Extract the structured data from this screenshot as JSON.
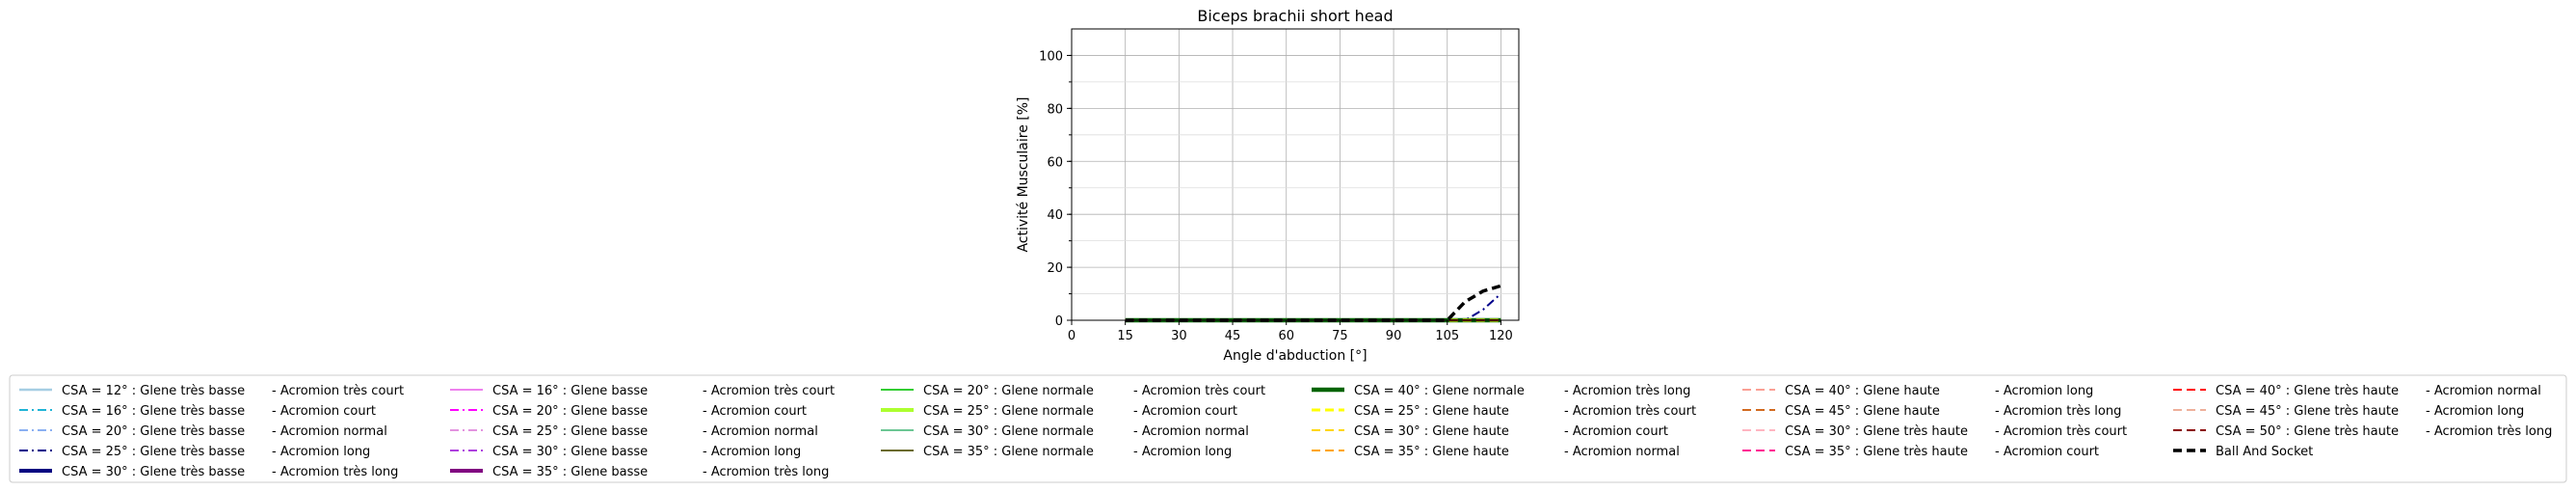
{
  "chart_data": {
    "type": "line",
    "title": "Biceps brachii short head",
    "xlabel": "Angle d'abduction [°]",
    "ylabel": "Activité Musculaire [%]",
    "xlim": [
      0,
      125
    ],
    "ylim": [
      0,
      110
    ],
    "xticks": [
      "0",
      "15",
      "30",
      "45",
      "60",
      "75",
      "90",
      "105",
      "120"
    ],
    "yticks": [
      "0",
      "20",
      "40",
      "60",
      "80",
      "100"
    ],
    "grid": true,
    "legend_position": "bottom",
    "x": [
      15,
      20,
      25,
      30,
      35,
      40,
      45,
      50,
      55,
      60,
      65,
      70,
      75,
      80,
      85,
      90,
      95,
      100,
      105,
      110,
      115,
      120
    ],
    "series": [
      {
        "name": "CSA = 12° : Glene très basse - Acromion très court",
        "color": "#a6cee3",
        "dash": "solid",
        "width": 2.5,
        "values": [
          0,
          0,
          0,
          0,
          0,
          0,
          0,
          0,
          0,
          0,
          0,
          0,
          0,
          0,
          0,
          0,
          0,
          0,
          0,
          0,
          0,
          0
        ]
      },
      {
        "name": "CSA = 16° : Glene très basse - Acromion court",
        "color": "#1fb4d6",
        "dash": "dashdot",
        "width": 2,
        "values": [
          0,
          0,
          0,
          0,
          0,
          0,
          0,
          0,
          0,
          0,
          0,
          0,
          0,
          0,
          0,
          0,
          0,
          0,
          0,
          0,
          0,
          0
        ]
      },
      {
        "name": "CSA = 20° : Glene très basse - Acromion normal",
        "color": "#6495ed",
        "dash": "dashdot",
        "width": 1.5,
        "values": [
          0,
          0,
          0,
          0,
          0,
          0,
          0,
          0,
          0,
          0,
          0,
          0,
          0,
          0,
          0,
          0,
          0,
          0,
          0,
          0,
          0,
          0
        ]
      },
      {
        "name": "CSA = 25° : Glene très basse - Acromion long",
        "color": "#00008b",
        "dash": "dashdot",
        "width": 2,
        "values": [
          0,
          0,
          0,
          0,
          0,
          0,
          0,
          0,
          0,
          0,
          0,
          0,
          0,
          0,
          0,
          0,
          0,
          0,
          0,
          0,
          4,
          10
        ]
      },
      {
        "name": "CSA = 30° : Glene très basse - Acromion très long",
        "color": "#000080",
        "dash": "solid",
        "width": 4,
        "values": [
          0,
          0,
          0,
          0,
          0,
          0,
          0,
          0,
          0,
          0,
          0,
          0,
          0,
          0,
          0,
          0,
          0,
          0,
          0,
          0,
          0,
          0
        ]
      },
      {
        "name": "CSA = 16° : Glene basse - Acromion très court",
        "color": "#ee82ee",
        "dash": "solid",
        "width": 2,
        "values": [
          0,
          0,
          0,
          0,
          0,
          0,
          0,
          0,
          0,
          0,
          0,
          0,
          0,
          0,
          0,
          0,
          0,
          0,
          0,
          0,
          0,
          0
        ]
      },
      {
        "name": "CSA = 20° : Glene basse - Acromion court",
        "color": "#ff00ff",
        "dash": "dashdot",
        "width": 2,
        "values": [
          0,
          0,
          0,
          0,
          0,
          0,
          0,
          0,
          0,
          0,
          0,
          0,
          0,
          0,
          0,
          0,
          0,
          0,
          0,
          0,
          0,
          0
        ]
      },
      {
        "name": "CSA = 25° : Glene basse - Acromion normal",
        "color": "#da70d6",
        "dash": "dashdot",
        "width": 1.5,
        "values": [
          0,
          0,
          0,
          0,
          0,
          0,
          0,
          0,
          0,
          0,
          0,
          0,
          0,
          0,
          0,
          0,
          0,
          0,
          0,
          0,
          0,
          0
        ]
      },
      {
        "name": "CSA = 30° : Glene basse - Acromion long",
        "color": "#9400d3",
        "dash": "dashdot",
        "width": 1.5,
        "values": [
          0,
          0,
          0,
          0,
          0,
          0,
          0,
          0,
          0,
          0,
          0,
          0,
          0,
          0,
          0,
          0,
          0,
          0,
          0,
          0,
          0,
          0
        ]
      },
      {
        "name": "CSA = 35° : Glene basse - Acromion très long",
        "color": "#800080",
        "dash": "solid",
        "width": 4,
        "values": [
          0,
          0,
          0,
          0,
          0,
          0,
          0,
          0,
          0,
          0,
          0,
          0,
          0,
          0,
          0,
          0,
          0,
          0,
          0,
          0,
          0,
          0
        ]
      },
      {
        "name": "CSA = 20° : Glene normale - Acromion très court",
        "color": "#32cd32",
        "dash": "solid",
        "width": 2,
        "values": [
          0,
          0,
          0,
          0,
          0,
          0,
          0,
          0,
          0,
          0,
          0,
          0,
          0,
          0,
          0,
          0,
          0,
          0,
          0,
          0,
          0,
          0
        ]
      },
      {
        "name": "CSA = 25° : Glene normale - Acromion court",
        "color": "#adff2f",
        "dash": "solid",
        "width": 4,
        "values": [
          0,
          0,
          0,
          0,
          0,
          0,
          0,
          0,
          0,
          0,
          0,
          0,
          0,
          0,
          0,
          0,
          0,
          0,
          0,
          0,
          0,
          0
        ]
      },
      {
        "name": "CSA = 30° : Glene normale - Acromion normal",
        "color": "#3cb371",
        "dash": "solid",
        "width": 1.5,
        "values": [
          0,
          0,
          0,
          0,
          0,
          0,
          0,
          0,
          0,
          0,
          0,
          0,
          0,
          0,
          0,
          0,
          0,
          0,
          0,
          0,
          0,
          0
        ]
      },
      {
        "name": "CSA = 35° : Glene normale - Acromion long",
        "color": "#6b6b2a",
        "dash": "solid",
        "width": 2,
        "values": [
          0,
          0,
          0,
          0,
          0,
          0,
          0,
          0,
          0,
          0,
          0,
          0,
          0,
          0,
          0,
          0,
          0,
          0,
          0,
          0,
          0,
          0
        ]
      },
      {
        "name": "CSA = 40° : Glene normale - Acromion très long",
        "color": "#006400",
        "dash": "solid",
        "width": 4.5,
        "values": [
          0,
          0,
          0,
          0,
          0,
          0,
          0,
          0,
          0,
          0,
          0,
          0,
          0,
          0,
          0,
          0,
          0,
          0,
          0,
          0,
          0,
          0
        ]
      },
      {
        "name": "CSA = 25° : Glene haute - Acromion très court",
        "color": "#ffff00",
        "dash": "dashed",
        "width": 3,
        "values": [
          0,
          0,
          0,
          0,
          0,
          0,
          0,
          0,
          0,
          0,
          0,
          0,
          0,
          0,
          0,
          0,
          0,
          0,
          0,
          0,
          0,
          0
        ]
      },
      {
        "name": "CSA = 30° : Glene haute - Acromion court",
        "color": "#ffd700",
        "dash": "dashed",
        "width": 2,
        "values": [
          0,
          0,
          0,
          0,
          0,
          0,
          0,
          0,
          0,
          0,
          0,
          0,
          0,
          0,
          0,
          0,
          0,
          0,
          0,
          0,
          0,
          0
        ]
      },
      {
        "name": "CSA = 35° : Glene haute - Acromion normal",
        "color": "#ffa500",
        "dash": "dashed",
        "width": 2,
        "values": [
          0,
          0,
          0,
          0,
          0,
          0,
          0,
          0,
          0,
          0,
          0,
          0,
          0,
          0,
          0,
          0,
          0,
          0,
          0,
          0,
          0,
          0
        ]
      },
      {
        "name": "CSA = 40° : Glene haute - Acromion long",
        "color": "#fa8072",
        "dash": "dashed",
        "width": 1.5,
        "values": [
          0,
          0,
          0,
          0,
          0,
          0,
          0,
          0,
          0,
          0,
          0,
          0,
          0,
          0,
          0,
          0,
          0,
          0,
          0,
          0,
          0,
          0
        ]
      },
      {
        "name": "CSA = 45° : Glene haute - Acromion très long",
        "color": "#d2691e",
        "dash": "dashed",
        "width": 2,
        "values": [
          0,
          0,
          0,
          0,
          0,
          0,
          0,
          0,
          0,
          0,
          0,
          0,
          0,
          0,
          0,
          0,
          0,
          0,
          0,
          0,
          0,
          0
        ]
      },
      {
        "name": "CSA = 30° : Glene très haute - Acromion très court",
        "color": "#ffb6c1",
        "dash": "dashed",
        "width": 2,
        "values": [
          0,
          0,
          0,
          0,
          0,
          0,
          0,
          0,
          0,
          0,
          0,
          0,
          0,
          0,
          0,
          0,
          0,
          0,
          0,
          0,
          0,
          0
        ]
      },
      {
        "name": "CSA = 35° : Glene très haute - Acromion court",
        "color": "#ff1493",
        "dash": "dashed",
        "width": 2,
        "values": [
          0,
          0,
          0,
          0,
          0,
          0,
          0,
          0,
          0,
          0,
          0,
          0,
          0,
          0,
          0,
          0,
          0,
          0,
          0,
          0,
          0,
          0
        ]
      },
      {
        "name": "CSA = 40° : Glene très haute - Acromion normal",
        "color": "#ff0000",
        "dash": "dashed",
        "width": 2,
        "values": [
          0,
          0,
          0,
          0,
          0,
          0,
          0,
          0,
          0,
          0,
          0,
          0,
          0,
          0,
          0,
          0,
          0,
          0,
          0,
          0,
          0,
          0
        ]
      },
      {
        "name": "CSA = 45° : Glene très haute - Acromion long",
        "color": "#e9967a",
        "dash": "dashed",
        "width": 1.5,
        "values": [
          0,
          0,
          0,
          0,
          0,
          0,
          0,
          0,
          0,
          0,
          0,
          0,
          0,
          0,
          0,
          0,
          0,
          0,
          0,
          0,
          0,
          0
        ]
      },
      {
        "name": "CSA = 50° : Glene très haute - Acromion très long",
        "color": "#8b0000",
        "dash": "dashed",
        "width": 2,
        "values": [
          0,
          0,
          0,
          0,
          0,
          0,
          0,
          0,
          0,
          0,
          0,
          0,
          0,
          0,
          0,
          0,
          0,
          0,
          0,
          0,
          0,
          0
        ]
      },
      {
        "name": "Ball And Socket",
        "color": "#000000",
        "dash": "dashed",
        "width": 3.5,
        "values": [
          0,
          0,
          0,
          0,
          0,
          0,
          0,
          0,
          0,
          0,
          0,
          0,
          0,
          0,
          0,
          0,
          0,
          0,
          0,
          7,
          11,
          13
        ]
      }
    ],
    "legend_columns": [
      [
        [
          "CSA = 12° : Glene très basse",
          "-  Acromion très court"
        ],
        [
          "CSA = 16° : Glene très basse",
          "-  Acromion court"
        ],
        [
          "CSA = 20° : Glene très basse",
          "-  Acromion normal"
        ],
        [
          "CSA = 25° : Glene très basse",
          "-  Acromion long"
        ],
        [
          "CSA = 30° : Glene très basse",
          "-  Acromion très long"
        ]
      ],
      [
        [
          "CSA = 16° : Glene basse",
          "-  Acromion très court"
        ],
        [
          "CSA = 20° : Glene basse",
          "-  Acromion court"
        ],
        [
          "CSA = 25° : Glene basse",
          "-  Acromion normal"
        ],
        [
          "CSA = 30° : Glene basse",
          "-  Acromion long"
        ],
        [
          "CSA = 35° : Glene basse",
          "-  Acromion très long"
        ]
      ],
      [
        [
          "CSA = 20° : Glene normale",
          "-  Acromion très court"
        ],
        [
          "CSA = 25° : Glene normale",
          "-  Acromion court"
        ],
        [
          "CSA = 30° : Glene normale",
          "-  Acromion normal"
        ],
        [
          "CSA = 35° : Glene normale",
          "-  Acromion long"
        ]
      ],
      [
        [
          "CSA = 40° : Glene normale",
          "-  Acromion très long"
        ],
        [
          "CSA = 25° : Glene haute",
          "-  Acromion très court"
        ],
        [
          "CSA = 30° : Glene haute",
          "-  Acromion court"
        ],
        [
          "CSA = 35° : Glene haute",
          "-  Acromion normal"
        ]
      ],
      [
        [
          "CSA = 40° : Glene haute",
          "-  Acromion long"
        ],
        [
          "CSA = 45° : Glene haute",
          "-  Acromion très long"
        ],
        [
          "CSA = 30° : Glene très haute",
          "-  Acromion très court"
        ],
        [
          "CSA = 35° : Glene très haute",
          "-  Acromion court"
        ]
      ],
      [
        [
          "CSA = 40° : Glene très haute",
          "-  Acromion normal"
        ],
        [
          "CSA = 45° : Glene très haute",
          "-  Acromion long"
        ],
        [
          "CSA = 50° : Glene très haute",
          "-  Acromion très long"
        ],
        [
          "Ball And Socket",
          ""
        ]
      ]
    ]
  }
}
